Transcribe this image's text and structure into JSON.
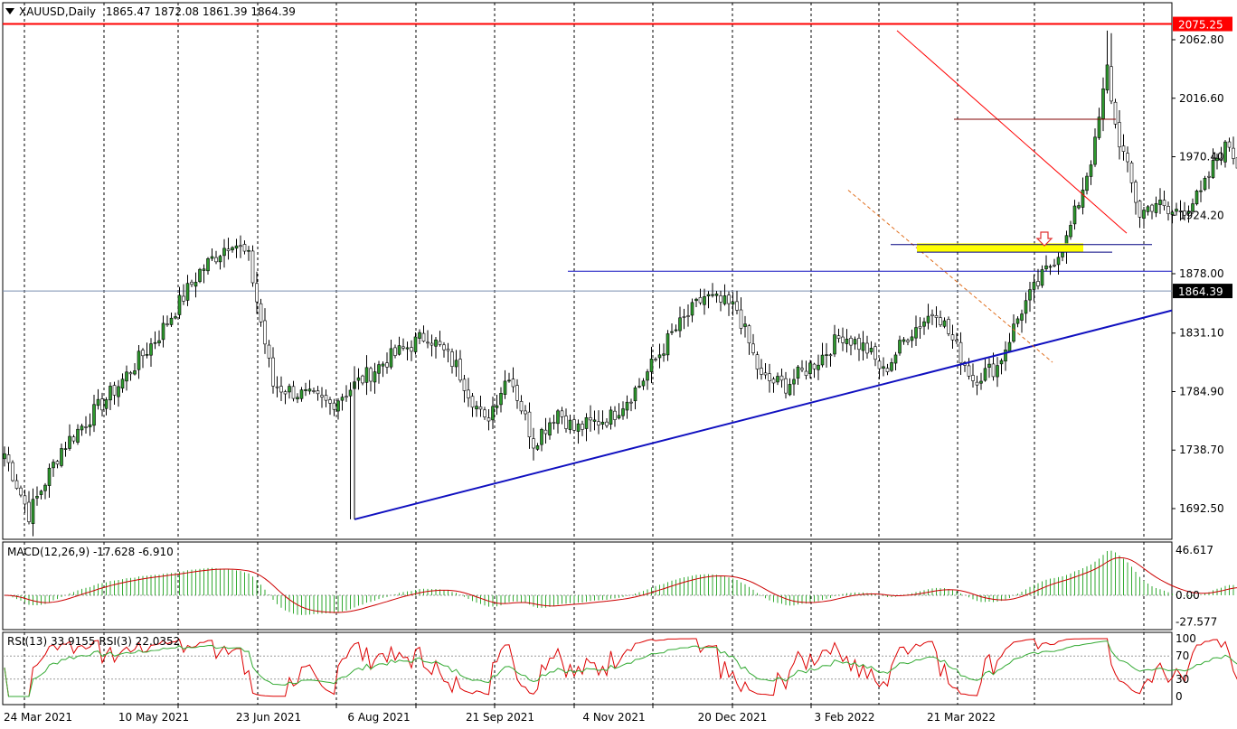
{
  "chart_data": {
    "type": "candlestick",
    "symbol_header": "XAUUSD,Daily",
    "ohlc_header": "1865.47 1872.08 1861.39 1864.39",
    "price_axis": {
      "ticks": [
        2062.8,
        2016.6,
        1970.4,
        1924.2,
        1878.0,
        1831.1,
        1784.9,
        1738.7,
        1692.5
      ],
      "tick_labels": [
        "2062.80",
        "2016.60",
        "1970.40",
        "1924.20",
        "1878.00",
        "1831.10",
        "1784.90",
        "1738.70",
        "1692.50"
      ],
      "ylim": [
        1675,
        2086
      ],
      "current_price": 1864.39,
      "current_price_label": "1864.39",
      "resistance_level": 2075.25,
      "resistance_label": "2075.25"
    },
    "date_labels": [
      "24 Mar 2021",
      "10 May 2021",
      "23 Jun 2021",
      "6 Aug 2021",
      "21 Sep 2021",
      "4 Nov 2021",
      "20 Dec 2021",
      "3 Feb 2022",
      "21 Mar 2022"
    ],
    "key_closes": [
      {
        "bar": 0,
        "close": 1736
      },
      {
        "bar": 6,
        "close": 1688
      },
      {
        "bar": 14,
        "close": 1740
      },
      {
        "bar": 28,
        "close": 1790
      },
      {
        "bar": 38,
        "close": 1830
      },
      {
        "bar": 48,
        "close": 1880
      },
      {
        "bar": 56,
        "close": 1905
      },
      {
        "bar": 60,
        "close": 1890
      },
      {
        "bar": 66,
        "close": 1790
      },
      {
        "bar": 80,
        "close": 1775
      },
      {
        "bar": 94,
        "close": 1810
      },
      {
        "bar": 104,
        "close": 1830
      },
      {
        "bar": 111,
        "close": 1805
      },
      {
        "bar": 118,
        "close": 1760
      },
      {
        "bar": 124,
        "close": 1800
      },
      {
        "bar": 130,
        "close": 1745
      },
      {
        "bar": 136,
        "close": 1770
      },
      {
        "bar": 140,
        "close": 1755
      },
      {
        "bar": 149,
        "close": 1765
      },
      {
        "bar": 156,
        "close": 1790
      },
      {
        "bar": 164,
        "close": 1830
      },
      {
        "bar": 172,
        "close": 1860
      },
      {
        "bar": 180,
        "close": 1850
      },
      {
        "bar": 186,
        "close": 1795
      },
      {
        "bar": 192,
        "close": 1790
      },
      {
        "bar": 200,
        "close": 1810
      },
      {
        "bar": 206,
        "close": 1830
      },
      {
        "bar": 212,
        "close": 1818
      },
      {
        "bar": 216,
        "close": 1800
      },
      {
        "bar": 222,
        "close": 1830
      },
      {
        "bar": 229,
        "close": 1850
      },
      {
        "bar": 233,
        "close": 1825
      },
      {
        "bar": 238,
        "close": 1795
      },
      {
        "bar": 244,
        "close": 1805
      },
      {
        "bar": 250,
        "close": 1850
      },
      {
        "bar": 256,
        "close": 1880
      },
      {
        "bar": 261,
        "close": 1905
      },
      {
        "bar": 264,
        "close": 1935
      },
      {
        "bar": 268,
        "close": 1980
      },
      {
        "bar": 271,
        "close": 2040
      },
      {
        "bar": 273,
        "close": 1995
      },
      {
        "bar": 276,
        "close": 1960
      },
      {
        "bar": 279,
        "close": 1925
      },
      {
        "bar": 283,
        "close": 1935
      },
      {
        "bar": 286,
        "close": 1925
      },
      {
        "bar": 290,
        "close": 1930
      },
      {
        "bar": 294,
        "close": 1940
      },
      {
        "bar": 298,
        "close": 1970
      },
      {
        "bar": 301,
        "close": 1980
      },
      {
        "bar": 305,
        "close": 1950
      },
      {
        "bar": 308,
        "close": 1910
      },
      {
        "bar": 311,
        "close": 1895
      },
      {
        "bar": 313,
        "close": 1900
      },
      {
        "bar": 315,
        "close": 1860
      },
      {
        "bar": 317,
        "close": 1864
      }
    ],
    "support_trendline": {
      "from": {
        "date": "6 Aug 2021",
        "price": 1684
      },
      "to_price": 1849
    },
    "macd": {
      "label": "MACD(12,26,9) -17.628 -6.910",
      "main": -17.628,
      "signal": -6.91,
      "ticks": [
        46.617,
        0.0,
        -27.577
      ],
      "tick_labels": [
        "46.617",
        "0.00",
        "-27.577"
      ]
    },
    "rsi": {
      "label": "RSI(13) 33.9155  RSI(3) 22.0352",
      "rsi13": 33.9155,
      "rsi3": 22.0352,
      "ticks": [
        100,
        70,
        30,
        0
      ],
      "tick_labels": [
        "100",
        "70",
        "30",
        "0"
      ]
    },
    "colors": {
      "bull": "#2e9a2e",
      "bear": "#000000",
      "trendline": "#1010c0",
      "resistance": "#ff0000",
      "signal": "#cc0000",
      "zone": "#ffff00",
      "grid": "#000000"
    }
  }
}
